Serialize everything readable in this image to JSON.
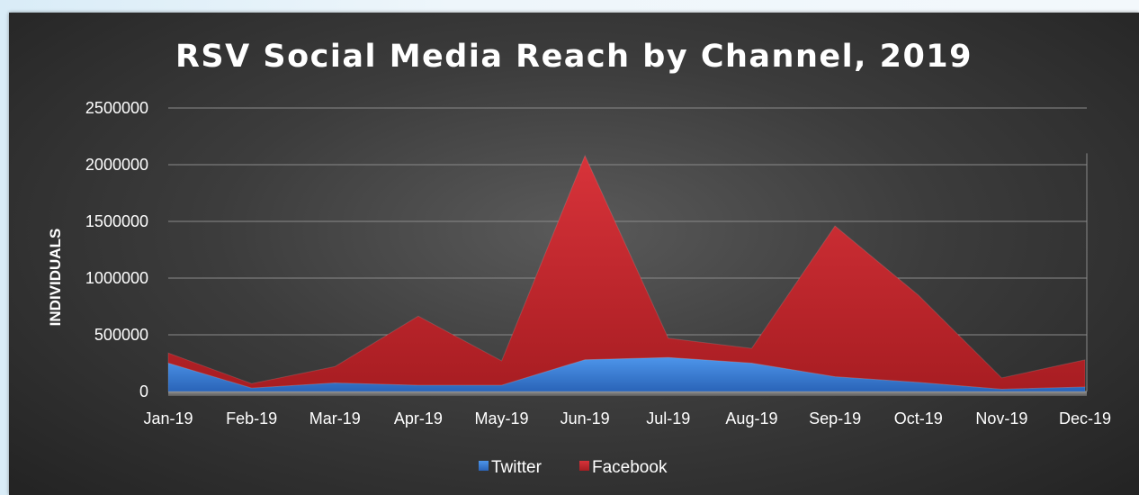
{
  "chart_data": {
    "type": "area",
    "stacked": true,
    "title": "RSV Social Media Reach by Channel, 2019",
    "xlabel": "",
    "ylabel": "INDIVIDUALS",
    "ylim": [
      0,
      2500000
    ],
    "yticks": [
      "0",
      "500000",
      "1000000",
      "1500000",
      "2000000",
      "2500000"
    ],
    "categories": [
      "Jan-19",
      "Feb-19",
      "Mar-19",
      "Apr-19",
      "May-19",
      "Jun-19",
      "Jul-19",
      "Aug-19",
      "Sep-19",
      "Oct-19",
      "Nov-19",
      "Dec-19"
    ],
    "grid": true,
    "legend_position": "bottom",
    "series": [
      {
        "name": "Twitter",
        "color": "#3a7fd8",
        "values": [
          250000,
          30000,
          75000,
          55000,
          55000,
          280000,
          300000,
          250000,
          130000,
          80000,
          20000,
          40000
        ]
      },
      {
        "name": "Facebook",
        "color": "#c0282c",
        "values": [
          90000,
          40000,
          145000,
          610000,
          215000,
          1800000,
          170000,
          130000,
          1330000,
          770000,
          100000,
          240000
        ]
      }
    ]
  }
}
